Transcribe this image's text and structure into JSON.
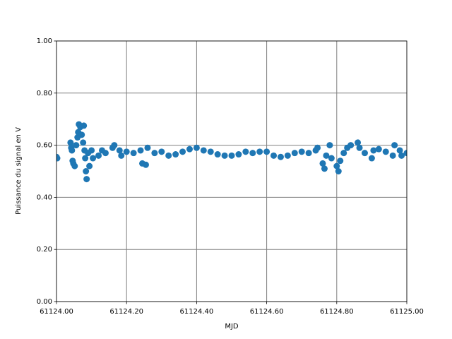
{
  "chart_data": {
    "type": "scatter",
    "x_label": "MJD",
    "y_label": "Puissance du signal en V",
    "xlim": [
      61124.0,
      61125.0
    ],
    "ylim": [
      0.0,
      1.0
    ],
    "xticks": [
      {
        "value": 61124.0,
        "label": "61124.00"
      },
      {
        "value": 61124.2,
        "label": "61124.20"
      },
      {
        "value": 61124.4,
        "label": "61124.40"
      },
      {
        "value": 61124.6,
        "label": "61124.60"
      },
      {
        "value": 61124.8,
        "label": "61124.80"
      },
      {
        "value": 61125.0,
        "label": "61125.00"
      }
    ],
    "yticks": [
      {
        "value": 0.0,
        "label": "0.00"
      },
      {
        "value": 0.2,
        "label": "0.20"
      },
      {
        "value": 0.4,
        "label": "0.40"
      },
      {
        "value": 0.6,
        "label": "0.60"
      },
      {
        "value": 0.8,
        "label": "0.80"
      },
      {
        "value": 1.0,
        "label": "1.00"
      }
    ],
    "grid": true,
    "color": "#1f77b4",
    "x": [
      61124.0,
      61124.002,
      61124.04,
      61124.042,
      61124.044,
      61124.046,
      61124.048,
      61124.052,
      61124.056,
      61124.06,
      61124.062,
      61124.064,
      61124.068,
      61124.072,
      61124.076,
      61124.078,
      61124.08,
      61124.082,
      61124.084,
      61124.086,
      61124.09,
      61124.094,
      61124.1,
      61124.104,
      61124.12,
      61124.13,
      61124.14,
      61124.16,
      61124.165,
      61124.18,
      61124.185,
      61124.2,
      61124.22,
      61124.24,
      61124.245,
      61124.255,
      61124.26,
      61124.28,
      61124.3,
      61124.32,
      61124.34,
      61124.36,
      61124.38,
      61124.4,
      61124.42,
      61124.44,
      61124.46,
      61124.48,
      61124.5,
      61124.52,
      61124.54,
      61124.56,
      61124.58,
      61124.6,
      61124.62,
      61124.64,
      61124.66,
      61124.68,
      61124.7,
      61124.72,
      61124.74,
      61124.745,
      61124.76,
      61124.765,
      61124.77,
      61124.78,
      61124.785,
      61124.8,
      61124.805,
      61124.81,
      61124.82,
      61124.83,
      61124.84,
      61124.86,
      61124.865,
      61124.88,
      61124.9,
      61124.905,
      61124.92,
      61124.94,
      61124.96,
      61124.965,
      61124.98,
      61124.985,
      61125.0
    ],
    "values": [
      0.555,
      0.55,
      0.61,
      0.59,
      0.58,
      0.54,
      0.53,
      0.52,
      0.6,
      0.63,
      0.65,
      0.68,
      0.67,
      0.64,
      0.61,
      0.675,
      0.58,
      0.55,
      0.5,
      0.47,
      0.57,
      0.52,
      0.58,
      0.55,
      0.56,
      0.58,
      0.57,
      0.59,
      0.6,
      0.58,
      0.56,
      0.575,
      0.57,
      0.58,
      0.53,
      0.525,
      0.59,
      0.57,
      0.575,
      0.56,
      0.565,
      0.575,
      0.585,
      0.59,
      0.58,
      0.575,
      0.565,
      0.56,
      0.56,
      0.565,
      0.575,
      0.57,
      0.575,
      0.575,
      0.56,
      0.555,
      0.56,
      0.57,
      0.575,
      0.57,
      0.58,
      0.59,
      0.53,
      0.51,
      0.56,
      0.6,
      0.55,
      0.52,
      0.5,
      0.54,
      0.57,
      0.59,
      0.6,
      0.61,
      0.59,
      0.57,
      0.55,
      0.58,
      0.585,
      0.575,
      0.56,
      0.6,
      0.58,
      0.56,
      0.57
    ]
  }
}
